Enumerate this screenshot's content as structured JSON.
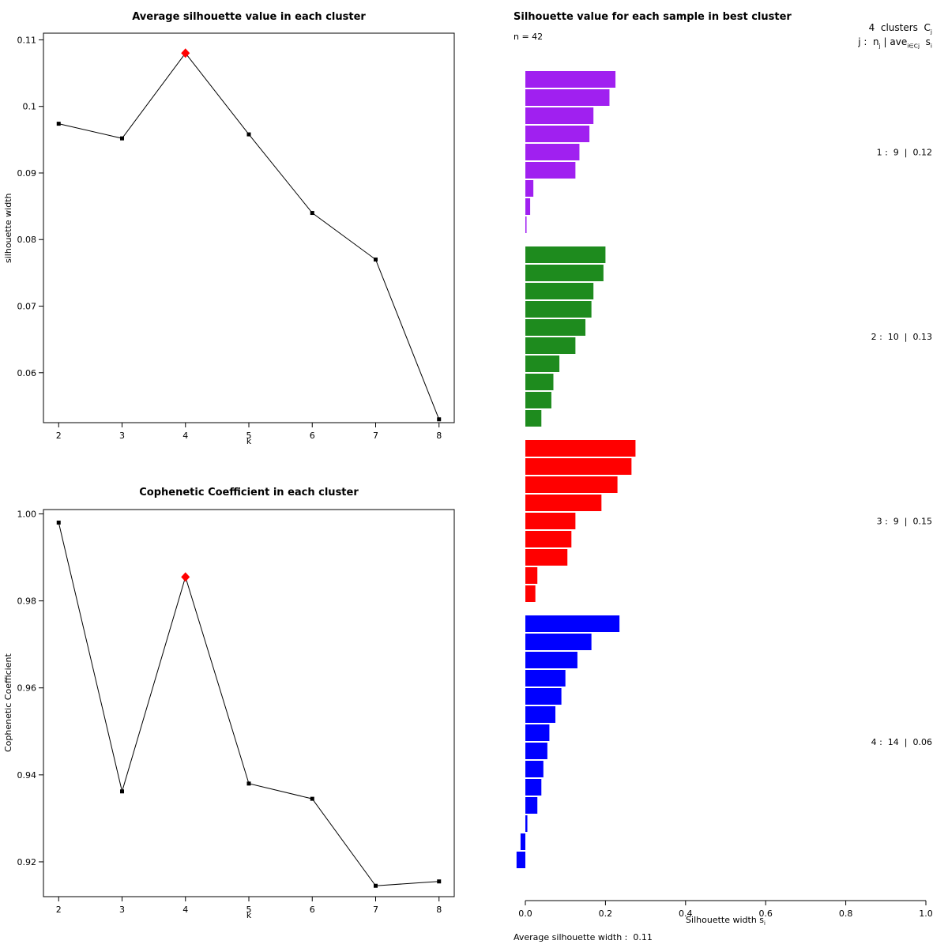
{
  "colors": {
    "foreground": "#000000",
    "highlight": "#ff0000",
    "cluster1": "#a020f0",
    "cluster2": "#1e8b1e",
    "cluster3": "#ff0000",
    "cluster4": "#0000ff"
  },
  "chart_data": [
    {
      "id": "avg-silhouette",
      "type": "line",
      "title": "Average silhouette value in each cluster",
      "xlabel": "k",
      "ylabel": "silhouette width",
      "x": [
        2,
        3,
        4,
        5,
        6,
        7,
        8
      ],
      "y": [
        0.0974,
        0.0952,
        0.108,
        0.0958,
        0.084,
        0.077,
        0.053
      ],
      "highlight_index": 2,
      "highlight_color": "#ff0000",
      "xlim": [
        1.76,
        8.24
      ],
      "ylim": [
        0.0525,
        0.111
      ],
      "xticks": [
        2,
        3,
        4,
        5,
        6,
        7,
        8
      ],
      "xtick_labels": [
        "2",
        "3",
        "4",
        "5",
        "6",
        "7",
        "8"
      ],
      "yticks": [
        0.06,
        0.07,
        0.08,
        0.09,
        0.1,
        0.11
      ],
      "ytick_labels": [
        "0.06",
        "0.07",
        "0.08",
        "0.09",
        "0.1",
        "0.11"
      ],
      "grid": false,
      "legend_position": "none"
    },
    {
      "id": "cophenetic",
      "type": "line",
      "title": "Cophenetic Coefficient in each cluster",
      "xlabel": "k",
      "ylabel": "Cophenetic Coefficient",
      "x": [
        2,
        3,
        4,
        5,
        6,
        7,
        8
      ],
      "y": [
        0.998,
        0.9362,
        0.9855,
        0.938,
        0.9345,
        0.9145,
        0.9155
      ],
      "highlight_index": 2,
      "highlight_color": "#ff0000",
      "xlim": [
        1.76,
        8.24
      ],
      "ylim": [
        0.912,
        1.001
      ],
      "xticks": [
        2,
        3,
        4,
        5,
        6,
        7,
        8
      ],
      "xtick_labels": [
        "2",
        "3",
        "4",
        "5",
        "6",
        "7",
        "8"
      ],
      "yticks": [
        0.92,
        0.94,
        0.96,
        0.98,
        1.0
      ],
      "ytick_labels": [
        "0.92",
        "0.94",
        "0.96",
        "0.98",
        "1.00"
      ],
      "grid": false,
      "legend_position": "none"
    },
    {
      "id": "silhouette-samples",
      "type": "bar",
      "title": "Silhouette value for each sample in best cluster",
      "subtitle": "n = 42",
      "n_total": 42,
      "xlabel_text": "Silhouette width s",
      "xlabel_sub": "i",
      "footer": "Average silhouette width :  0.11",
      "average_silhouette_width": 0.11,
      "xlim": [
        0,
        1
      ],
      "xticks": [
        0,
        0.2,
        0.4,
        0.6,
        0.8,
        1.0
      ],
      "xtick_labels": [
        "0.0",
        "0.2",
        "0.4",
        "0.6",
        "0.8",
        "1.0"
      ],
      "legend": {
        "line1_text": "4  clusters  C",
        "line1_sub": "j",
        "line2_a": "j :  n",
        "line2_a_sub": "j",
        "line2_b": " | ave",
        "line2_b_sub": "i∈Cj",
        "line2_c": "  s",
        "line2_c_sub": "i"
      },
      "clusters": [
        {
          "j": 1,
          "n": 9,
          "avg": 0.12,
          "label": "1 :  9  |  0.12",
          "color": "#a020f0",
          "values": [
            0.225,
            0.21,
            0.17,
            0.16,
            0.135,
            0.125,
            0.02,
            0.012,
            0.003
          ]
        },
        {
          "j": 2,
          "n": 10,
          "avg": 0.13,
          "label": "2 :  10  |  0.13",
          "color": "#1e8b1e",
          "values": [
            0.2,
            0.195,
            0.17,
            0.165,
            0.15,
            0.125,
            0.085,
            0.07,
            0.065,
            0.04
          ]
        },
        {
          "j": 3,
          "n": 9,
          "avg": 0.15,
          "label": "3 :  9  |  0.15",
          "color": "#ff0000",
          "values": [
            0.275,
            0.265,
            0.23,
            0.19,
            0.125,
            0.115,
            0.105,
            0.03,
            0.025
          ]
        },
        {
          "j": 4,
          "n": 14,
          "avg": 0.06,
          "label": "4 :  14  |  0.06",
          "color": "#0000ff",
          "values": [
            0.235,
            0.165,
            0.13,
            0.1,
            0.09,
            0.075,
            0.06,
            0.055,
            0.045,
            0.04,
            0.03,
            0.005,
            -0.012,
            -0.022
          ]
        }
      ]
    }
  ]
}
